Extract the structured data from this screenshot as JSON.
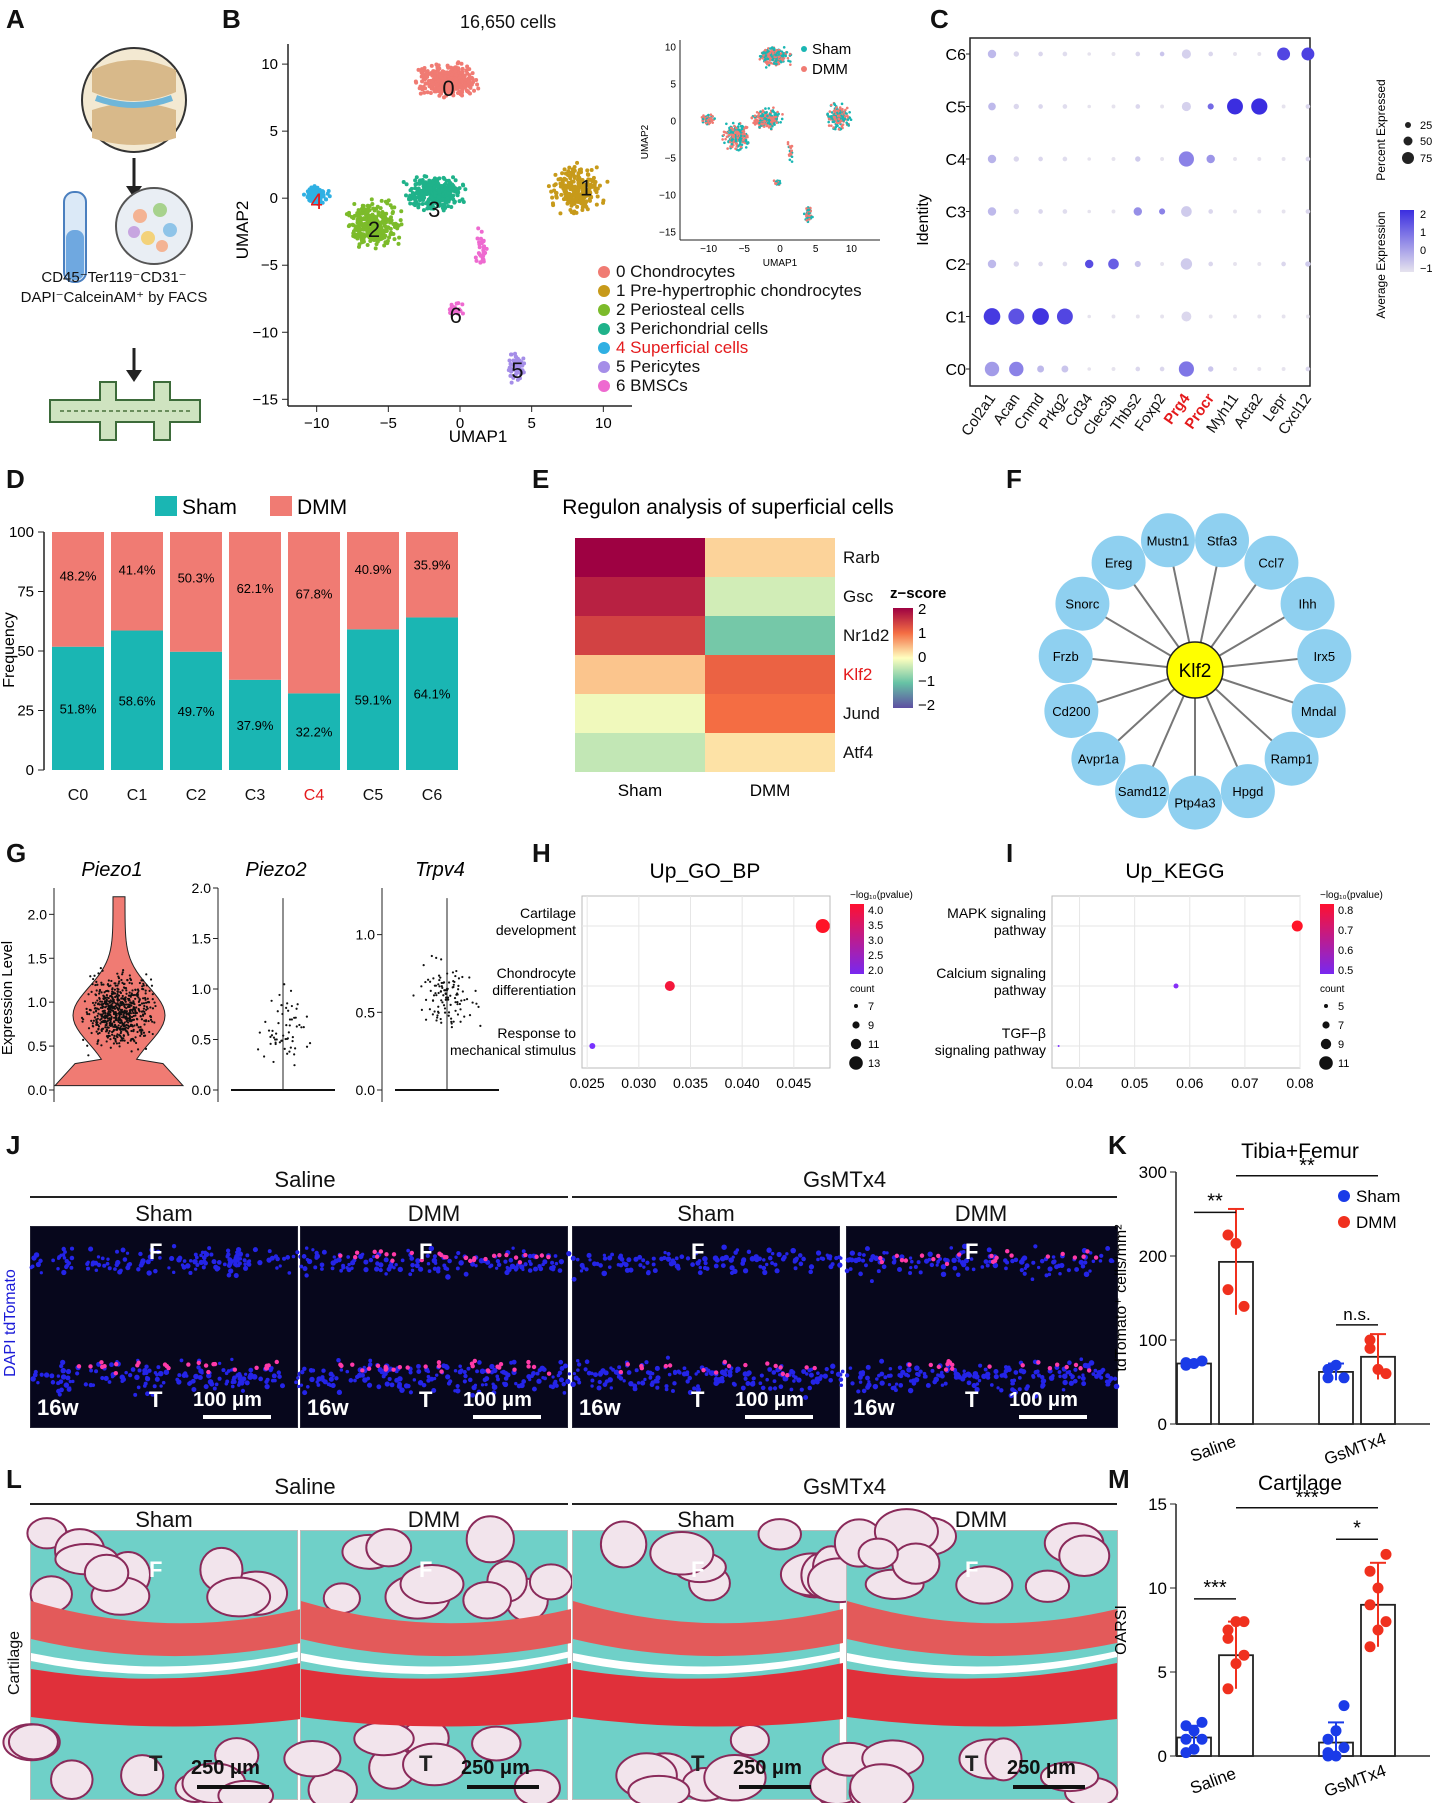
{
  "panel_labels": [
    "A",
    "B",
    "C",
    "D",
    "E",
    "F",
    "G",
    "H",
    "I",
    "J",
    "K",
    "L",
    "M"
  ],
  "panelA": {
    "facs_line1": "CD45⁻Ter119⁻CD31⁻",
    "facs_line2": "DAPI⁻CalceinAM⁺ by FACS"
  },
  "panelB": {
    "title": "16,650 cells",
    "xlabel": "UMAP1",
    "ylabel": "UMAP2",
    "xticks": [
      "−10",
      "−5",
      "0",
      "5",
      "10"
    ],
    "yticks": [
      "10",
      "5",
      "0",
      "−5",
      "−10",
      "−15"
    ],
    "inset_legend": [
      "Sham",
      "DMM"
    ],
    "inset_xlabel": "UMAP1",
    "inset_ylabel": "UMAP2",
    "inset_xticks": [
      "−10",
      "−5",
      "0",
      "5",
      "10"
    ],
    "inset_yticks": [
      "10",
      "5",
      "0",
      "−5",
      "−10",
      "−15"
    ],
    "clusters": [
      {
        "id": "0",
        "name": "0 Chondrocytes",
        "color": "#f07b73"
      },
      {
        "id": "1",
        "name": "1 Pre-hypertrophic chondrocytes",
        "color": "#c79a1a"
      },
      {
        "id": "2",
        "name": "2 Periosteal cells",
        "color": "#7cbb2a"
      },
      {
        "id": "3",
        "name": "3 Perichondrial cells",
        "color": "#1fb28a"
      },
      {
        "id": "4",
        "name": "4 Superficial cells",
        "color": "#2fb0e3"
      },
      {
        "id": "5",
        "name": "5 Pericytes",
        "color": "#a58ee8"
      },
      {
        "id": "6",
        "name": "6 BMSCs",
        "color": "#ee6ad0"
      }
    ]
  },
  "chart_data": [
    {
      "panel": "C",
      "type": "dotplot",
      "ylabel": "Identity",
      "rows": [
        "C6",
        "C5",
        "C4",
        "C3",
        "C2",
        "C1",
        "C0"
      ],
      "genes": [
        "Col2a1",
        "Acan",
        "Cnmd",
        "Prkg2",
        "Cd34",
        "Clec3b",
        "Thbs2",
        "Foxp2",
        "Prg4",
        "Procr",
        "Myh11",
        "Acta2",
        "Lepr",
        "Cxcl12"
      ],
      "highlight_genes": [
        "Prg4",
        "Procr"
      ],
      "size_legend_title": "Percent Expressed",
      "size_legend": [
        "25",
        "50",
        "75"
      ],
      "color_legend_title": "Average Expression",
      "color_legend": [
        "2",
        "1",
        "0",
        "−1"
      ],
      "dots": {
        "C6": [
          [
            40,
            -0.3
          ],
          [
            20,
            -0.8
          ],
          [
            15,
            -0.8
          ],
          [
            15,
            -0.9
          ],
          [
            8,
            -1
          ],
          [
            10,
            -1
          ],
          [
            15,
            -0.8
          ],
          [
            15,
            -0.5
          ],
          [
            45,
            -0.7
          ],
          [
            15,
            -0.8
          ],
          [
            10,
            -1
          ],
          [
            10,
            -1
          ],
          [
            70,
            1.6
          ],
          [
            70,
            1.7
          ]
        ],
        "C5": [
          [
            35,
            -0.3
          ],
          [
            20,
            -0.8
          ],
          [
            15,
            -0.8
          ],
          [
            15,
            -0.9
          ],
          [
            8,
            -1
          ],
          [
            10,
            -1
          ],
          [
            15,
            -0.8
          ],
          [
            10,
            -1
          ],
          [
            45,
            -0.7
          ],
          [
            25,
            1.0
          ],
          [
            90,
            2.0
          ],
          [
            92,
            2.0
          ],
          [
            10,
            -1
          ],
          [
            15,
            -0.8
          ]
        ],
        "C4": [
          [
            40,
            -0.2
          ],
          [
            20,
            -0.8
          ],
          [
            15,
            -0.8
          ],
          [
            15,
            -0.9
          ],
          [
            8,
            -1
          ],
          [
            10,
            -1
          ],
          [
            20,
            -0.6
          ],
          [
            10,
            -1
          ],
          [
            85,
            0.6
          ],
          [
            40,
            0.3
          ],
          [
            10,
            -1
          ],
          [
            10,
            -1
          ],
          [
            10,
            -1
          ],
          [
            15,
            -0.8
          ]
        ],
        "C3": [
          [
            40,
            -0.3
          ],
          [
            20,
            -0.8
          ],
          [
            15,
            -0.8
          ],
          [
            15,
            -0.9
          ],
          [
            8,
            -1
          ],
          [
            10,
            -1
          ],
          [
            40,
            0.4
          ],
          [
            25,
            0.6
          ],
          [
            55,
            -0.6
          ],
          [
            15,
            -0.8
          ],
          [
            10,
            -1
          ],
          [
            10,
            -1
          ],
          [
            10,
            -1
          ],
          [
            15,
            -0.8
          ]
        ],
        "C2": [
          [
            40,
            -0.3
          ],
          [
            20,
            -0.8
          ],
          [
            15,
            -0.8
          ],
          [
            15,
            -0.9
          ],
          [
            40,
            1.5
          ],
          [
            55,
            1.2
          ],
          [
            25,
            -0.5
          ],
          [
            10,
            -1
          ],
          [
            60,
            -0.6
          ],
          [
            15,
            -0.8
          ],
          [
            10,
            -1
          ],
          [
            10,
            -1
          ],
          [
            15,
            -0.8
          ],
          [
            20,
            -0.6
          ]
        ],
        "C1": [
          [
            95,
            1.8
          ],
          [
            90,
            1.4
          ],
          [
            95,
            1.9
          ],
          [
            90,
            1.6
          ],
          [
            8,
            -1
          ],
          [
            10,
            -1
          ],
          [
            10,
            -1
          ],
          [
            10,
            -1
          ],
          [
            50,
            -0.8
          ],
          [
            10,
            -1
          ],
          [
            10,
            -1
          ],
          [
            10,
            -1
          ],
          [
            10,
            -1
          ],
          [
            10,
            -1
          ]
        ],
        "C0": [
          [
            80,
            0.2
          ],
          [
            80,
            0.6
          ],
          [
            30,
            -0.3
          ],
          [
            30,
            -0.5
          ],
          [
            8,
            -1
          ],
          [
            10,
            -1
          ],
          [
            15,
            -0.8
          ],
          [
            15,
            -0.8
          ],
          [
            85,
            0.8
          ],
          [
            20,
            -0.5
          ],
          [
            10,
            -1
          ],
          [
            10,
            -1
          ],
          [
            10,
            -1
          ],
          [
            15,
            -0.8
          ]
        ]
      }
    },
    {
      "panel": "D",
      "type": "stacked_bar",
      "ylabel": "Frequency",
      "legend": [
        "Sham",
        "DMM"
      ],
      "categories": [
        "C0",
        "C1",
        "C2",
        "C3",
        "C4",
        "C5",
        "C6"
      ],
      "highlight_category": "C4",
      "series": [
        {
          "name": "Sham",
          "values": [
            51.8,
            58.6,
            49.7,
            37.9,
            32.2,
            59.1,
            64.1
          ]
        },
        {
          "name": "DMM",
          "values": [
            48.2,
            41.4,
            50.3,
            62.1,
            67.8,
            40.9,
            35.9
          ]
        }
      ],
      "sham_labels": [
        "51.8%",
        "58.6%",
        "49.7%",
        "37.9%",
        "32.2%",
        "59.1%",
        "64.1%"
      ],
      "dmm_labels": [
        "48.2%",
        "41.4%",
        "50.3%",
        "62.1%",
        "67.8%",
        "40.9%",
        "35.9%"
      ],
      "ylim": [
        0,
        100
      ],
      "yticks": [
        "0",
        "25",
        "50",
        "75",
        "100"
      ]
    },
    {
      "panel": "E",
      "type": "heatmap",
      "title": "Regulon analysis of superficial cells",
      "rows": [
        "Rarb",
        "Gsc",
        "Nr1d2",
        "Klf2",
        "Jund",
        "Atf4"
      ],
      "highlight_row": "Klf2",
      "columns": [
        "Sham",
        "DMM"
      ],
      "values": [
        [
          2.0,
          0.3
        ],
        [
          1.7,
          -0.3
        ],
        [
          1.4,
          -0.9
        ],
        [
          0.4,
          1.1
        ],
        [
          -0.1,
          1.0
        ],
        [
          -0.4,
          0.2
        ]
      ],
      "legend_title": "z−score",
      "legend_ticks": [
        "2",
        "1",
        "0",
        "−1",
        "−2"
      ]
    },
    {
      "panel": "G",
      "type": "violin",
      "ylabel": "Expression Level",
      "genes": [
        "Piezo1",
        "Piezo2",
        "Trpv4"
      ],
      "yticks": [
        [
          "0.0",
          "0.5",
          "1.0",
          "1.5",
          "2.0"
        ],
        [
          "0.0",
          "0.5",
          "1.0",
          "1.5",
          "2.0"
        ],
        [
          "0.0",
          "0.5",
          "1.0"
        ]
      ]
    },
    {
      "panel": "H",
      "type": "scatter",
      "title": "Up_GO_BP",
      "terms": [
        "Cartilage development",
        "Chondrocyte differentiation",
        "Response to mechanical stimulus"
      ],
      "terms_l1": [
        "Cartilage",
        "Chondrocyte",
        "Response to"
      ],
      "terms_l2": [
        "development",
        "differentiation",
        "mechanical stimulus"
      ],
      "x": [
        0.0478,
        0.033,
        0.0255
      ],
      "count": [
        13,
        10,
        7
      ],
      "neglog10p": [
        4.2,
        4.0,
        1.8
      ],
      "xticks": [
        "0.025",
        "0.030",
        "0.035",
        "0.040",
        "0.045"
      ],
      "color_title": "−log₁₀(pvalue)",
      "color_ticks": [
        "4.0",
        "3.5",
        "3.0",
        "2.5",
        "2.0"
      ],
      "size_title": "count",
      "size_ticks": [
        "7",
        "9",
        "11",
        "13"
      ]
    },
    {
      "panel": "I",
      "type": "scatter",
      "title": "Up_KEGG",
      "terms": [
        "MAPK signaling pathway",
        "Calcium signaling pathway",
        "TGF−β signaling pathway"
      ],
      "terms_l1": [
        "MAPK signaling",
        "Calcium signaling",
        "TGF−β"
      ],
      "terms_l2": [
        "pathway",
        "pathway",
        "signaling pathway"
      ],
      "x": [
        0.0795,
        0.0575,
        0.0362
      ],
      "count": [
        11,
        7,
        5
      ],
      "neglog10p": [
        0.9,
        0.45,
        0.42
      ],
      "xticks": [
        "0.04",
        "0.05",
        "0.06",
        "0.07",
        "0.08"
      ],
      "color_title": "−log₁₀(pvalue)",
      "color_ticks": [
        "0.8",
        "0.7",
        "0.6",
        "0.5"
      ],
      "size_title": "count",
      "size_ticks": [
        "5",
        "7",
        "9",
        "11"
      ]
    },
    {
      "panel": "K",
      "type": "bar_dot",
      "title": "Tibia+Femur",
      "ylabel": "tdTomato⁺ cells/mm²",
      "groups": [
        "Saline",
        "GsMTx4"
      ],
      "legend": [
        "Sham",
        "DMM"
      ],
      "means": [
        [
          72,
          193
        ],
        [
          62,
          80
        ]
      ],
      "sd": [
        [
          4,
          63
        ],
        [
          10,
          27
        ]
      ],
      "points": [
        [
          [
            70,
            72,
            75,
            73
          ],
          [
            160,
            215,
            140,
            225
          ]
        ],
        [
          [
            55,
            70,
            55,
            65
          ],
          [
            90,
            65,
            60,
            100
          ]
        ]
      ],
      "sig": [
        "**",
        "**",
        "n.s."
      ],
      "ylim": [
        0,
        300
      ],
      "yticks": [
        "0",
        "100",
        "200",
        "300"
      ]
    },
    {
      "panel": "M",
      "type": "bar_dot",
      "title": "Cartilage",
      "ylabel": "OARSI",
      "groups": [
        "Saline",
        "GsMTx4"
      ],
      "means": [
        [
          1.1,
          6.0
        ],
        [
          0.8,
          9.0
        ]
      ],
      "sd": [
        [
          0.7,
          2.0
        ],
        [
          1.2,
          2.5
        ]
      ],
      "points": [
        [
          [
            0.2,
            0.4,
            1,
            1,
            1.5,
            2,
            1.8
          ],
          [
            4,
            5.5,
            6,
            7,
            8,
            8,
            7.5
          ]
        ],
        [
          [
            0,
            0,
            0.5,
            1,
            1.5,
            3,
            0.2
          ],
          [
            6.5,
            7.5,
            8,
            9,
            10,
            12,
            11
          ]
        ]
      ],
      "sig": [
        "***",
        "***",
        "*"
      ],
      "ylim": [
        0,
        15
      ],
      "yticks": [
        "0",
        "5",
        "10",
        "15"
      ]
    }
  ],
  "panelF": {
    "center": "Klf2",
    "targets": [
      "Mustn1",
      "Stfa3",
      "Ccl7",
      "Ihh",
      "Irx5",
      "Mndal",
      "Ramp1",
      "Hpgd",
      "Ptp4a3",
      "Samd12",
      "Avpr1a",
      "Cd200",
      "Frzb",
      "Snorc",
      "Ereg"
    ]
  },
  "panelJ": {
    "groups": [
      "Saline",
      "GsMTx4"
    ],
    "conditions": [
      "Sham",
      "DMM",
      "Sham",
      "DMM"
    ],
    "side_label": "DAPI tdTomato",
    "femur": "F",
    "tibia": "T",
    "age": "16w",
    "scale": "100 μm"
  },
  "panelL": {
    "groups": [
      "Saline",
      "GsMTx4"
    ],
    "conditions": [
      "Sham",
      "DMM",
      "Sham",
      "DMM"
    ],
    "side_label": "Cartilage",
    "femur": "F",
    "tibia": "T",
    "scale": "250 μm"
  },
  "colors": {
    "sham": "#1ab6b3",
    "dmm": "#f07b73",
    "highlight": "#e41a1c",
    "bubble": "#8fd0f0",
    "node": "#ffff00"
  }
}
